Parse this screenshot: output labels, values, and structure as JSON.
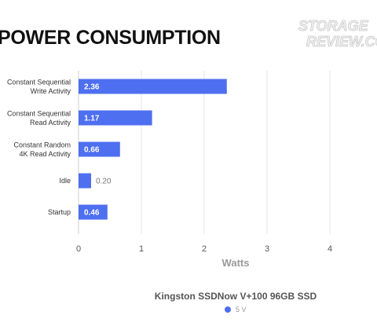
{
  "title": "POWER CONSUMPTION",
  "watermark": {
    "line1": "STORAGE",
    "line2": "REVIEW.COM"
  },
  "chart_data": {
    "type": "bar",
    "orientation": "horizontal",
    "categories": [
      [
        "Constant Sequential",
        "Write Activity"
      ],
      [
        "Constant Sequential",
        "Read Activity"
      ],
      [
        "Constant Random",
        "4K Read Activity"
      ],
      [
        "Idle"
      ],
      [
        "Startup"
      ]
    ],
    "series": [
      {
        "name": "5 V",
        "values": [
          2.36,
          1.17,
          0.66,
          0.2,
          0.46
        ],
        "color": "#4e6ff0"
      }
    ],
    "data_labels": [
      "2.36",
      "1.17",
      "0.66",
      "0.20",
      "0.46"
    ],
    "xlabel": "Watts",
    "xticks": [
      "0",
      "1",
      "2",
      "3",
      "4"
    ],
    "xlim": [
      0,
      5
    ],
    "grid": true,
    "legend_title": "Kingston SSDNow V+100 96GB SSD",
    "legend_position": "bottom"
  }
}
